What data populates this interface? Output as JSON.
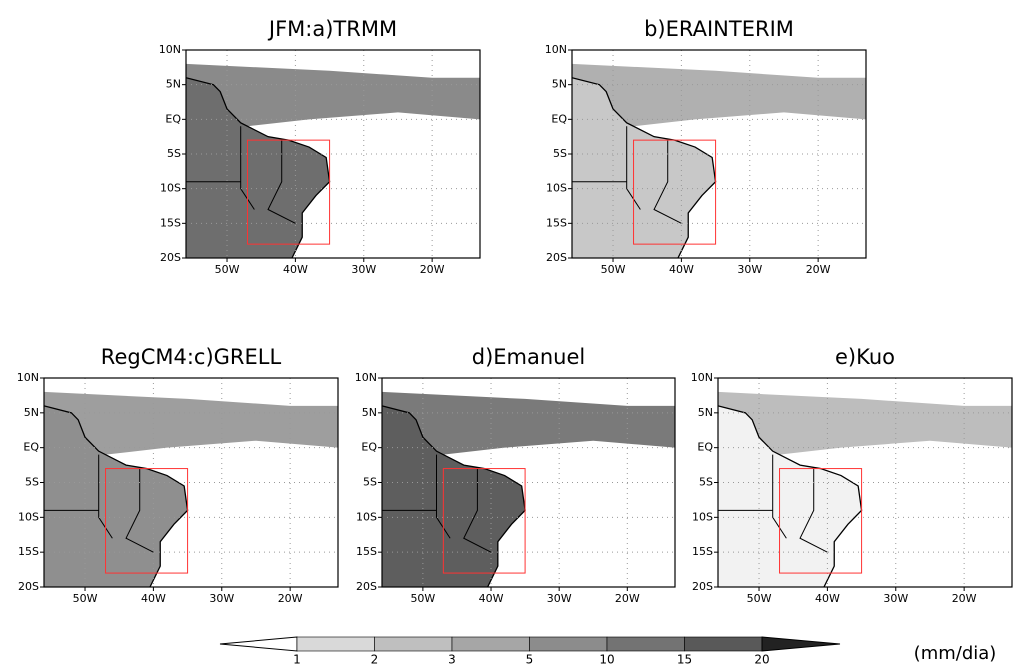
{
  "panels": [
    {
      "title": "JFM:a)TRMM"
    },
    {
      "title": "b)ERAINTERIM"
    },
    {
      "title": "RegCM4:c)GRELL"
    },
    {
      "title": "d)Emanuel"
    },
    {
      "title": "e)Kuo"
    }
  ],
  "lon_range": [
    -56,
    -13
  ],
  "lat_range": [
    -20,
    10
  ],
  "lat_ticks": [
    {
      "value": 10,
      "label": "10N"
    },
    {
      "value": 5,
      "label": "5N"
    },
    {
      "value": 0,
      "label": "EQ"
    },
    {
      "value": -5,
      "label": "5S"
    },
    {
      "value": -10,
      "label": "10S"
    },
    {
      "value": -15,
      "label": "15S"
    },
    {
      "value": -20,
      "label": "20S"
    }
  ],
  "lon_ticks": [
    {
      "value": -50,
      "label": "50W"
    },
    {
      "value": -40,
      "label": "40W"
    },
    {
      "value": -30,
      "label": "30W"
    },
    {
      "value": -20,
      "label": "20W"
    }
  ],
  "highlight_box": {
    "lon": [
      -47,
      -35
    ],
    "lat": [
      -18,
      -3
    ],
    "color": "#ff3333"
  },
  "colorbar": {
    "levels": [
      1,
      2,
      3,
      5,
      10,
      15,
      20
    ],
    "colors": [
      "#ffffff",
      "#d9d9d9",
      "#bfbfbf",
      "#a6a6a6",
      "#8c8c8c",
      "#737373",
      "#595959",
      "#222222"
    ],
    "units": "(mm/dia)"
  }
}
